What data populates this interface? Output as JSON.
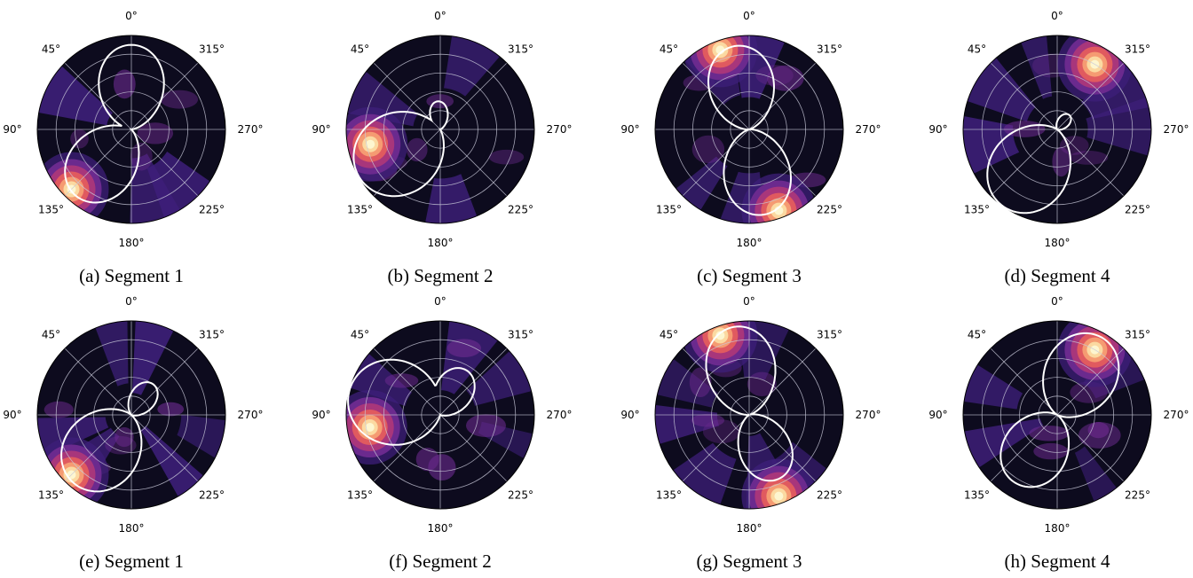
{
  "colors": {
    "background": "#ffffff",
    "ring_grid": "#c8c8d8",
    "pattern_line": "#ffffff",
    "colormap": [
      "#0d0b1e",
      "#3e1f7a",
      "#6b2a8e",
      "#a8367b",
      "#e05a5f",
      "#f59b72",
      "#fbd9a1",
      "#fdf6d0"
    ]
  },
  "chart_data": [
    {
      "type": "polar_heatmap",
      "caption": "(a) Segment 1",
      "angle_labels": [
        "0°",
        "45°",
        "90°",
        "135°",
        "180°",
        "225°",
        "270°",
        "315°"
      ],
      "angle_direction": "counter-clockwise from top",
      "peak": {
        "angle_deg": 135,
        "radius_frac": 0.9
      },
      "pattern_lobes": [
        {
          "angle_deg": 0,
          "r_frac": 0.9,
          "w": 0.8
        },
        {
          "angle_deg": 140,
          "r_frac": 0.92,
          "w": 0.8
        }
      ]
    },
    {
      "type": "polar_heatmap",
      "caption": "(b) Segment 2",
      "angle_labels": [
        "0°",
        "45°",
        "90°",
        "135°",
        "180°",
        "225°",
        "270°",
        "315°"
      ],
      "angle_direction": "counter-clockwise from top",
      "peak": {
        "angle_deg": 102,
        "radius_frac": 0.76
      },
      "pattern_lobes": [
        {
          "angle_deg": 120,
          "r_frac": 1.0,
          "w": 1.1
        },
        {
          "angle_deg": 5,
          "r_frac": 0.3,
          "w": 0.5
        }
      ]
    },
    {
      "type": "polar_heatmap",
      "caption": "(c) Segment 3",
      "angle_labels": [
        "0°",
        "45°",
        "90°",
        "135°",
        "180°",
        "225°",
        "270°",
        "315°"
      ],
      "angle_direction": "counter-clockwise from top",
      "peak": {
        "angle_deg": 20,
        "radius_frac": 0.9
      },
      "secondary_peak": {
        "angle_deg": 200,
        "radius_frac": 0.92
      },
      "pattern_lobes": [
        {
          "angle_deg": 10,
          "r_frac": 0.9,
          "w": 0.8
        },
        {
          "angle_deg": 190,
          "r_frac": 0.92,
          "w": 0.8
        }
      ]
    },
    {
      "type": "polar_heatmap",
      "caption": "(d) Segment 4",
      "angle_labels": [
        "0°",
        "45°",
        "90°",
        "135°",
        "180°",
        "225°",
        "270°",
        "315°"
      ],
      "angle_direction": "counter-clockwise from top",
      "peak": {
        "angle_deg": 330,
        "radius_frac": 0.8
      },
      "pattern_lobes": [
        {
          "angle_deg": 145,
          "r_frac": 1.0,
          "w": 1.0
        },
        {
          "angle_deg": 320,
          "r_frac": 0.2,
          "w": 0.5
        }
      ]
    },
    {
      "type": "polar_heatmap",
      "caption": "(e) Segment 1",
      "angle_labels": [
        "0°",
        "45°",
        "90°",
        "135°",
        "180°",
        "225°",
        "270°",
        "315°"
      ],
      "angle_direction": "counter-clockwise from top",
      "peak": {
        "angle_deg": 135,
        "radius_frac": 0.9
      },
      "pattern_lobes": [
        {
          "angle_deg": 140,
          "r_frac": 0.95,
          "w": 1.0
        },
        {
          "angle_deg": 325,
          "r_frac": 0.4,
          "w": 0.6
        }
      ]
    },
    {
      "type": "polar_heatmap",
      "caption": "(f) Segment 2",
      "angle_labels": [
        "0°",
        "45°",
        "90°",
        "135°",
        "180°",
        "225°",
        "270°",
        "315°"
      ],
      "angle_direction": "counter-clockwise from top",
      "peak": {
        "angle_deg": 100,
        "radius_frac": 0.76
      },
      "pattern_lobes": [
        {
          "angle_deg": 75,
          "r_frac": 1.0,
          "w": 1.2
        },
        {
          "angle_deg": 330,
          "r_frac": 0.55,
          "w": 0.7
        }
      ]
    },
    {
      "type": "polar_heatmap",
      "caption": "(g) Segment 3",
      "angle_labels": [
        "0°",
        "45°",
        "90°",
        "135°",
        "180°",
        "225°",
        "270°",
        "315°"
      ],
      "angle_direction": "counter-clockwise from top",
      "peak": {
        "angle_deg": 20,
        "radius_frac": 0.9
      },
      "secondary_peak": {
        "angle_deg": 200,
        "radius_frac": 0.92
      },
      "pattern_lobes": [
        {
          "angle_deg": 10,
          "r_frac": 0.95,
          "w": 0.8
        },
        {
          "angle_deg": 205,
          "r_frac": 0.75,
          "w": 0.7
        }
      ]
    },
    {
      "type": "polar_heatmap",
      "caption": "(h) Segment 4",
      "angle_labels": [
        "0°",
        "45°",
        "90°",
        "135°",
        "180°",
        "225°",
        "270°",
        "315°"
      ],
      "angle_direction": "counter-clockwise from top",
      "peak": {
        "angle_deg": 330,
        "radius_frac": 0.8
      },
      "pattern_lobes": [
        {
          "angle_deg": 330,
          "r_frac": 0.95,
          "w": 0.9
        },
        {
          "angle_deg": 148,
          "r_frac": 0.85,
          "w": 0.9
        }
      ]
    }
  ]
}
